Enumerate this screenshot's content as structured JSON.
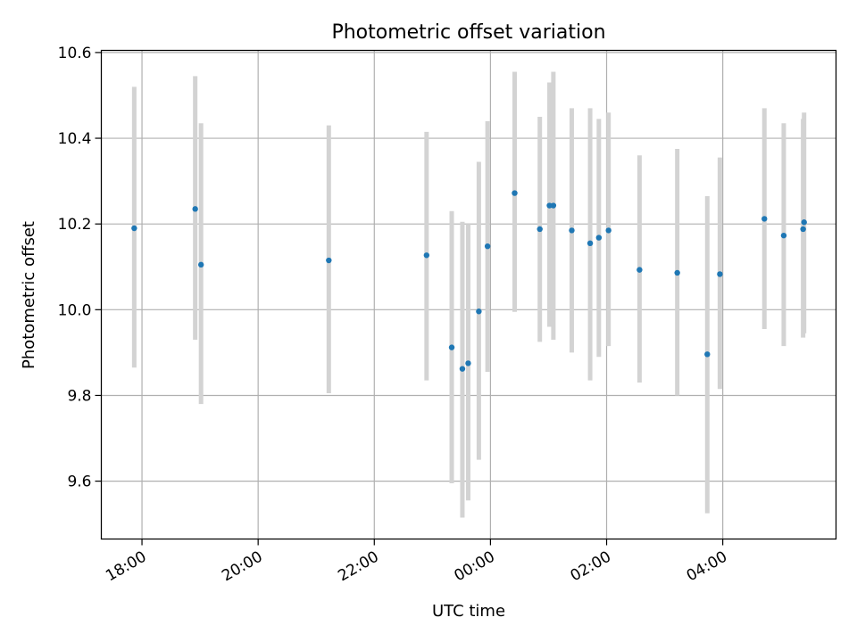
{
  "chart_data": {
    "type": "scatter",
    "title": "Photometric offset variation",
    "xlabel": "UTC time",
    "ylabel": "Photometric offset",
    "x_axis": "time",
    "xlim": [
      "17:18",
      "05:57"
    ],
    "ylim": [
      9.465,
      10.605
    ],
    "x_ticks": [
      "18:00",
      "20:00",
      "22:00",
      "00:00",
      "02:00",
      "04:00"
    ],
    "y_ticks": [
      9.6,
      9.8,
      10.0,
      10.2,
      10.4,
      10.6
    ],
    "grid": true,
    "marker_color": "#1f77b4",
    "errorbar_color": "#d3d3d3",
    "points": [
      {
        "x": "17:52",
        "y": 10.19,
        "ylow": 9.865,
        "yhigh": 10.52
      },
      {
        "x": "18:55",
        "y": 10.235,
        "ylow": 9.93,
        "yhigh": 10.545
      },
      {
        "x": "19:01",
        "y": 10.105,
        "ylow": 9.78,
        "yhigh": 10.435
      },
      {
        "x": "21:13",
        "y": 10.115,
        "ylow": 9.805,
        "yhigh": 10.43
      },
      {
        "x": "22:54",
        "y": 10.127,
        "ylow": 9.835,
        "yhigh": 10.415
      },
      {
        "x": "23:20",
        "y": 9.912,
        "ylow": 9.595,
        "yhigh": 10.23
      },
      {
        "x": "23:31",
        "y": 9.862,
        "ylow": 9.515,
        "yhigh": 10.205
      },
      {
        "x": "23:37",
        "y": 9.875,
        "ylow": 9.555,
        "yhigh": 10.2
      },
      {
        "x": "23:48",
        "y": 9.996,
        "ylow": 9.65,
        "yhigh": 10.345
      },
      {
        "x": "23:57",
        "y": 10.148,
        "ylow": 9.855,
        "yhigh": 10.44
      },
      {
        "x": "00:25",
        "y": 10.272,
        "ylow": 9.995,
        "yhigh": 10.555
      },
      {
        "x": "00:51",
        "y": 10.188,
        "ylow": 9.925,
        "yhigh": 10.45
      },
      {
        "x": "01:01",
        "y": 10.243,
        "ylow": 9.96,
        "yhigh": 10.53
      },
      {
        "x": "01:05",
        "y": 10.243,
        "ylow": 9.93,
        "yhigh": 10.555
      },
      {
        "x": "01:24",
        "y": 10.185,
        "ylow": 9.9,
        "yhigh": 10.47
      },
      {
        "x": "01:43",
        "y": 10.155,
        "ylow": 9.835,
        "yhigh": 10.47
      },
      {
        "x": "01:52",
        "y": 10.168,
        "ylow": 9.89,
        "yhigh": 10.445
      },
      {
        "x": "02:02",
        "y": 10.185,
        "ylow": 9.915,
        "yhigh": 10.46
      },
      {
        "x": "02:34",
        "y": 10.093,
        "ylow": 9.83,
        "yhigh": 10.36
      },
      {
        "x": "03:13",
        "y": 10.086,
        "ylow": 9.8,
        "yhigh": 10.375
      },
      {
        "x": "03:44",
        "y": 9.896,
        "ylow": 9.525,
        "yhigh": 10.265
      },
      {
        "x": "03:57",
        "y": 10.083,
        "ylow": 9.815,
        "yhigh": 10.355
      },
      {
        "x": "04:43",
        "y": 10.212,
        "ylow": 9.955,
        "yhigh": 10.47
      },
      {
        "x": "05:03",
        "y": 10.173,
        "ylow": 9.915,
        "yhigh": 10.435
      },
      {
        "x": "05:23",
        "y": 10.188,
        "ylow": 9.935,
        "yhigh": 10.445
      },
      {
        "x": "05:24",
        "y": 10.204,
        "ylow": 9.945,
        "yhigh": 10.46
      }
    ]
  }
}
